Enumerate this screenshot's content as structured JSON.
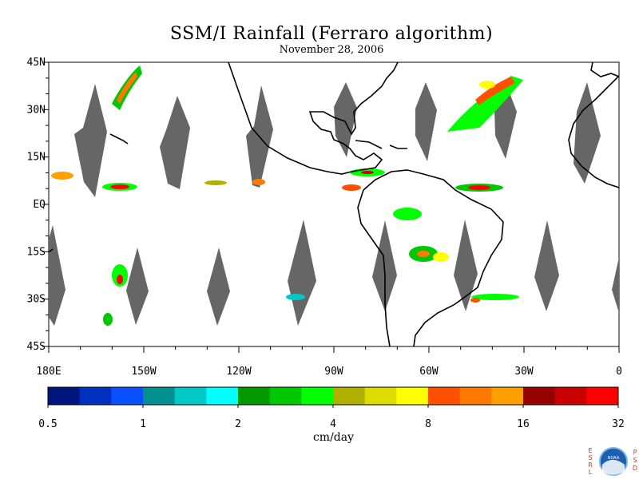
{
  "title": "SSM/I Rainfall (Ferraro algorithm)",
  "date": "November 28, 2006",
  "map": {
    "lon_range": [
      -180,
      0
    ],
    "lat_range": [
      -45,
      45
    ],
    "lat_labels": [
      "45N",
      "30N",
      "15N",
      "EQ",
      "15S",
      "30S",
      "45S"
    ],
    "lon_labels": [
      "180E",
      "150W",
      "120W",
      "90W",
      "60W",
      "30W",
      "0"
    ],
    "no_data_color": "#666666",
    "coastline_color": "#000000"
  },
  "colorbar": {
    "unit": "cm/day",
    "tick_labels": [
      "0.5",
      "1",
      "2",
      "4",
      "8",
      "16",
      "32"
    ],
    "colors": [
      "#00167e",
      "#0030c0",
      "#0a50ff",
      "#009090",
      "#00c8c8",
      "#00ffff",
      "#009900",
      "#00c800",
      "#00ff00",
      "#b0b000",
      "#dcdc00",
      "#ffff00",
      "#ff5000",
      "#ff7800",
      "#ffa000",
      "#960000",
      "#c80000",
      "#ff0000"
    ]
  },
  "logo": {
    "left_letters": [
      "E",
      "S",
      "R",
      "L"
    ],
    "right_letters": [
      "P",
      "S",
      "D"
    ],
    "seal_text": "NOAA",
    "left_color": "#d03030",
    "seal_color": "#1c5fae"
  }
}
